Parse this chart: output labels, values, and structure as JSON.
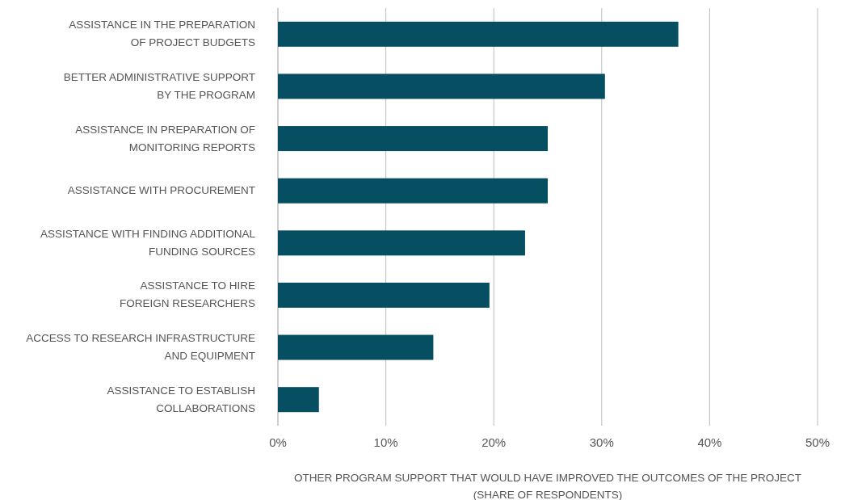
{
  "chart_data": {
    "type": "bar",
    "orientation": "horizontal",
    "xlabel": "OTHER PROGRAM SUPPORT THAT WOULD HAVE IMPROVED THE OUTCOMES OF THE PROJECT\n(SHARE OF RESPONDENTS)",
    "categories": [
      "ASSISTANCE IN THE PREPARATION\nOF PROJECT BUDGETS",
      "BETTER ADMINISTRATIVE SUPPORT\nBY THE PROGRAM",
      "ASSISTANCE IN PREPARATION OF\nMONITORING REPORTS",
      "ASSISTANCE WITH PROCUREMENT",
      "ASSISTANCE WITH FINDING ADDITIONAL\nFUNDING SOURCES",
      "ASSISTANCE TO HIRE\nFOREIGN RESEARCHERS",
      "ACCESS TO RESEARCH INFRASTRUCTURE\nAND EQUIPMENT",
      "ASSISTANCE TO ESTABLISH\nCOLLABORATIONS"
    ],
    "values": [
      37.1,
      30.3,
      25.0,
      25.0,
      22.9,
      19.6,
      14.4,
      3.8
    ],
    "color": "#064f63",
    "xlim": [
      0,
      50
    ],
    "xticks": [
      {
        "value": 0,
        "label": "0%"
      },
      {
        "value": 10,
        "label": "10%"
      },
      {
        "value": 20,
        "label": "20%"
      },
      {
        "value": 30,
        "label": "30%"
      },
      {
        "value": 40,
        "label": "40%"
      },
      {
        "value": 50,
        "label": "50%"
      }
    ],
    "grid": "x"
  }
}
